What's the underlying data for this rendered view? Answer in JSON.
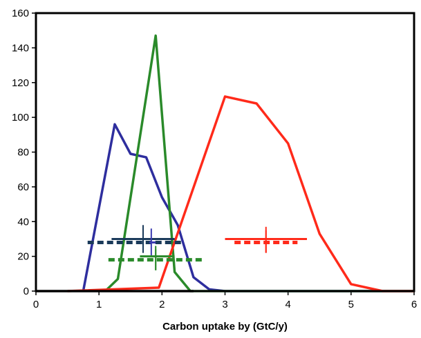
{
  "chart_data": {
    "type": "line",
    "title": "",
    "xlabel": "Carbon uptake by (GtC/y)",
    "ylabel": "",
    "xlim": [
      0,
      6
    ],
    "ylim": [
      0,
      160
    ],
    "x_ticks": [
      "0",
      "1",
      "2",
      "3",
      "4",
      "5",
      "6"
    ],
    "y_ticks": [
      "0",
      "20",
      "40",
      "60",
      "80",
      "100",
      "120",
      "140",
      "160"
    ],
    "grid": false,
    "legend": "none",
    "series": [
      {
        "color": "#2e2e9e",
        "x": [
          0.75,
          1.25,
          1.5,
          1.75,
          2.0,
          2.25,
          2.5,
          2.75,
          3.0,
          6.0
        ],
        "y": [
          0,
          96,
          79,
          77,
          54,
          38,
          8,
          1,
          0,
          0
        ]
      },
      {
        "color": "#2a8a2a",
        "x": [
          1.1,
          1.3,
          1.9,
          2.2,
          2.45,
          6.0
        ],
        "y": [
          0,
          7,
          147,
          11,
          0,
          0
        ]
      },
      {
        "color": "#ff2a1a",
        "x": [
          0.5,
          1.95,
          3.0,
          3.5,
          4.0,
          4.5,
          5.0,
          5.5,
          6.0
        ],
        "y": [
          0,
          2,
          112,
          108,
          85,
          33,
          4,
          0,
          0
        ]
      },
      {
        "color": "#000000",
        "x": [
          0.0,
          2.5
        ],
        "y": [
          0,
          0
        ]
      }
    ],
    "error_markers": [
      {
        "color": "#1a3a5a",
        "style": "solid",
        "x": 1.7,
        "y": 30,
        "xerr": [
          1.2,
          2.2
        ],
        "yerr": [
          22,
          38
        ]
      },
      {
        "color": "#1a3a5a",
        "style": "dashed",
        "x": 1.7,
        "y": 28,
        "xerr": [
          0.82,
          2.35
        ],
        "yerr": [
          22,
          36
        ]
      },
      {
        "color": "#3a3ab0",
        "style": "solid",
        "x": 1.83,
        "y": 28,
        "xerr": [
          1.8,
          1.9
        ],
        "yerr": [
          20,
          36
        ]
      },
      {
        "color": "#2a8a2a",
        "style": "dashed",
        "x": 1.9,
        "y": 18,
        "xerr": [
          1.15,
          2.65
        ],
        "yerr": [
          12,
          24
        ]
      },
      {
        "color": "#2a8a2a",
        "style": "solid",
        "x": 1.9,
        "y": 20,
        "xerr": [
          1.65,
          2.2
        ],
        "yerr": [
          12,
          26
        ]
      },
      {
        "color": "#ff2a1a",
        "style": "solid",
        "x": 3.65,
        "y": 30,
        "xerr": [
          3.0,
          4.3
        ],
        "yerr": [
          22,
          37
        ]
      },
      {
        "color": "#ff2a1a",
        "style": "dashed",
        "x": 3.65,
        "y": 28,
        "xerr": [
          3.15,
          4.15
        ],
        "yerr": [
          22,
          35
        ]
      }
    ]
  }
}
